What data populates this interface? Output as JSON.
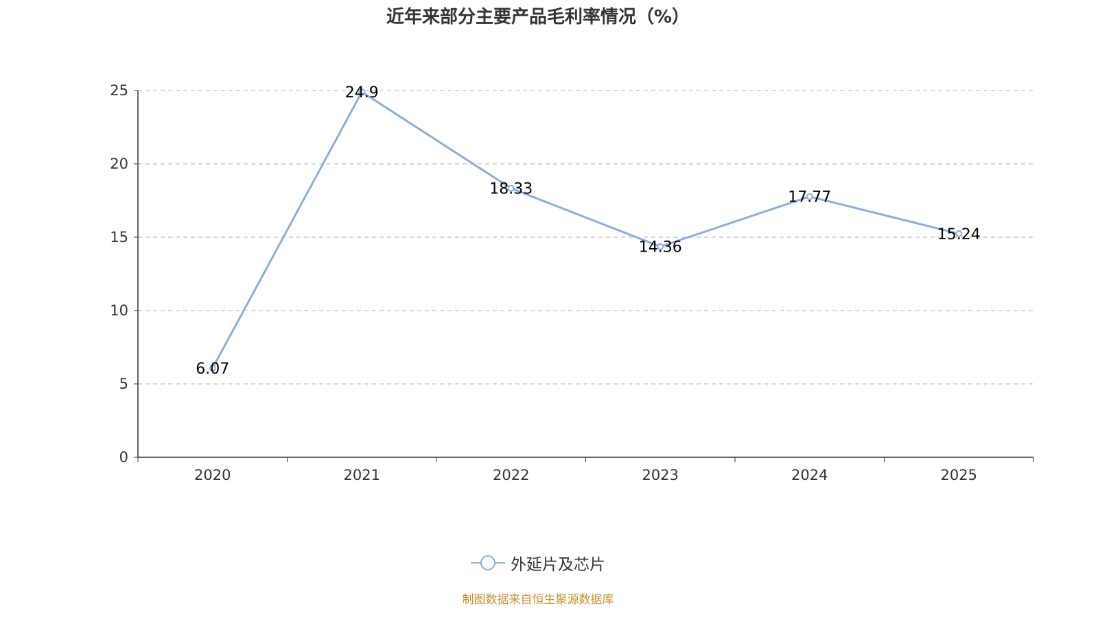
{
  "chart_data": {
    "type": "line",
    "title": "近年来部分主要产品毛利率情况（%）",
    "categories": [
      "2020",
      "2021",
      "2022",
      "2023",
      "2024",
      "2025"
    ],
    "series": [
      {
        "name": "外延片及芯片",
        "values": [
          6.07,
          24.9,
          18.33,
          14.36,
          17.77,
          15.24
        ],
        "labels": [
          "6.07",
          "24.9",
          "18.33",
          "14.36",
          "17.77",
          "15.24"
        ],
        "color": "#8eacdc"
      }
    ],
    "yticks": [
      "0",
      "5",
      "10",
      "15",
      "20",
      "25"
    ],
    "ylim": [
      0,
      25
    ],
    "grid": true,
    "legend": "bottom-center",
    "xlabel": "",
    "ylabel": ""
  },
  "source": "制图数据来自恒生聚源数据库"
}
